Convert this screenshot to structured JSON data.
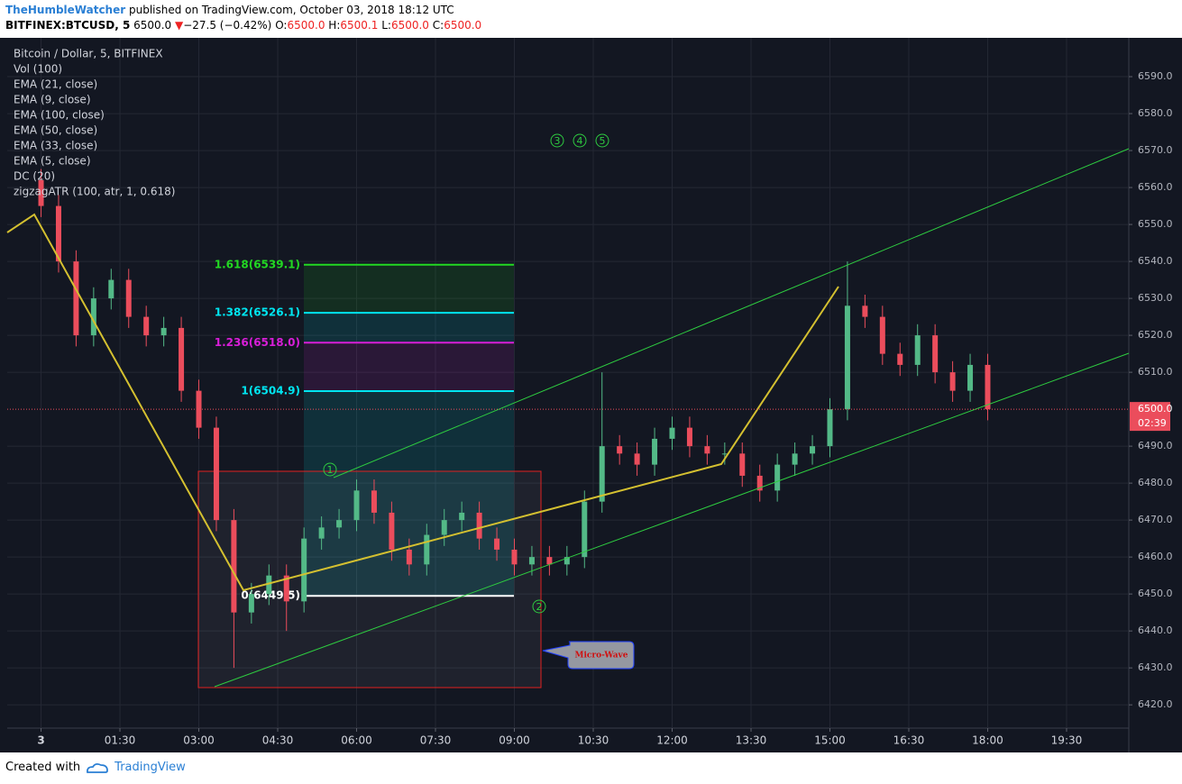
{
  "header": {
    "author": "TheHumbleWatcher",
    "published": "published on TradingView.com, October 03, 2018 18:12 UTC",
    "symbol": "BITFINEX:BTCUSD, 5",
    "price": "6500.0",
    "arrow": "▼",
    "change": "−27.5 (−0.42%)",
    "o_label": "O:",
    "o": "6500.0",
    "h_label": "H:",
    "h": "6500.1",
    "l_label": "L:",
    "l": "6500.0",
    "c_label": "C:",
    "c": "6500.0"
  },
  "chart_data": {
    "type": "candlestick",
    "title": "Bitcoin / Dollar, 5, BITFINEX",
    "indicators": [
      "Vol (100)",
      "EMA (21, close)",
      "EMA (9, close)",
      "EMA (100, close)",
      "EMA (50, close)",
      "EMA (33, close)",
      "EMA (5, close)",
      "DC (20)",
      "zigzagATR (100, atr, 1, 0.618)"
    ],
    "x": [
      0,
      20,
      40,
      60,
      80,
      100,
      120,
      140,
      160,
      180,
      200,
      220,
      240,
      260,
      280,
      300,
      320,
      340,
      360,
      380,
      400,
      420,
      440,
      460,
      480,
      500,
      520,
      540,
      560,
      580,
      600,
      620,
      640,
      660,
      680,
      700,
      720,
      740,
      760,
      780,
      800,
      820,
      840,
      860,
      880,
      900,
      920,
      940,
      960,
      980,
      1000,
      1020,
      1040,
      1060,
      1080
    ],
    "open": [
      6562,
      6555,
      6540,
      6520,
      6530,
      6535,
      6525,
      6520,
      6522,
      6505,
      6495,
      6470,
      6445,
      6450,
      6455,
      6448,
      6465,
      6468,
      6470,
      6478,
      6472,
      6462,
      6458,
      6466,
      6470,
      6472,
      6465,
      6462,
      6458,
      6460,
      6458,
      6460,
      6475,
      6490,
      6488,
      6485,
      6492,
      6495,
      6490,
      6488,
      6488,
      6482,
      6478,
      6485,
      6488,
      6490,
      6500,
      6528,
      6525,
      6515,
      6512,
      6520,
      6510,
      6505,
      6512
    ],
    "high": [
      6565,
      6558,
      6543,
      6533,
      6538,
      6538,
      6528,
      6525,
      6525,
      6508,
      6498,
      6473,
      6453,
      6458,
      6458,
      6468,
      6471,
      6473,
      6481,
      6481,
      6475,
      6465,
      6469,
      6473,
      6475,
      6475,
      6468,
      6465,
      6463,
      6463,
      6463,
      6478,
      6510,
      6493,
      6491,
      6495,
      6498,
      6498,
      6493,
      6491,
      6491,
      6485,
      6488,
      6491,
      6493,
      6503,
      6540,
      6531,
      6528,
      6518,
      6523,
      6523,
      6513,
      6515,
      6515
    ],
    "low": [
      6552,
      6537,
      6517,
      6517,
      6527,
      6522,
      6517,
      6517,
      6502,
      6492,
      6467,
      6430,
      6442,
      6447,
      6440,
      6445,
      6462,
      6465,
      6467,
      6469,
      6459,
      6455,
      6455,
      6463,
      6467,
      6462,
      6459,
      6455,
      6455,
      6455,
      6455,
      6457,
      6472,
      6485,
      6482,
      6482,
      6489,
      6487,
      6485,
      6485,
      6479,
      6475,
      6475,
      6482,
      6485,
      6487,
      6497,
      6522,
      6512,
      6509,
      6509,
      6507,
      6502,
      6502,
      6497
    ],
    "close": [
      6555,
      6540,
      6520,
      6530,
      6535,
      6525,
      6520,
      6522,
      6505,
      6495,
      6470,
      6445,
      6450,
      6455,
      6448,
      6465,
      6468,
      6470,
      6478,
      6472,
      6462,
      6458,
      6466,
      6470,
      6472,
      6465,
      6462,
      6458,
      6460,
      6458,
      6460,
      6475,
      6490,
      6488,
      6485,
      6492,
      6495,
      6490,
      6488,
      6488,
      6482,
      6478,
      6485,
      6488,
      6490,
      6500,
      6528,
      6525,
      6515,
      6512,
      6520,
      6510,
      6505,
      6512,
      6500
    ],
    "up_color": "#53b987",
    "down_color": "#eb4d5c",
    "xlim": [
      -38.6,
      1241
    ],
    "xticks": [
      {
        "value": 0,
        "label": "3"
      },
      {
        "value": 90,
        "label": "01:30"
      },
      {
        "value": 180,
        "label": "03:00"
      },
      {
        "value": 270,
        "label": "04:30"
      },
      {
        "value": 360,
        "label": "06:00"
      },
      {
        "value": 450,
        "label": "07:30"
      },
      {
        "value": 540,
        "label": "09:00"
      },
      {
        "value": 630,
        "label": "10:30"
      },
      {
        "value": 720,
        "label": "12:00"
      },
      {
        "value": 810,
        "label": "13:30"
      },
      {
        "value": 900,
        "label": "15:00"
      },
      {
        "value": 990,
        "label": "16:30"
      },
      {
        "value": 1080,
        "label": "18:00"
      },
      {
        "value": 1170,
        "label": "19:30"
      }
    ],
    "ylim": [
      6413.7,
      6600.5
    ],
    "yticks": [
      {
        "value": 6420,
        "label": "6420.0"
      },
      {
        "value": 6430,
        "label": "6430.0"
      },
      {
        "value": 6440,
        "label": "6440.0"
      },
      {
        "value": 6450,
        "label": "6450.0"
      },
      {
        "value": 6460,
        "label": "6460.0"
      },
      {
        "value": 6470,
        "label": "6470.0"
      },
      {
        "value": 6480,
        "label": "6480.0"
      },
      {
        "value": 6490,
        "label": "6490.0"
      },
      {
        "value": 6510,
        "label": "6510.0"
      },
      {
        "value": 6520,
        "label": "6520.0"
      },
      {
        "value": 6530,
        "label": "6530.0"
      },
      {
        "value": 6540,
        "label": "6540.0"
      },
      {
        "value": 6550,
        "label": "6550.0"
      },
      {
        "value": 6560,
        "label": "6560.0"
      },
      {
        "value": 6570,
        "label": "6570.0"
      },
      {
        "value": 6580,
        "label": "6580.0"
      },
      {
        "value": 6590,
        "label": "6590.0"
      }
    ],
    "grid": true,
    "last_price": {
      "value": 6500,
      "label": "6500.0"
    },
    "countdown": "02:39",
    "fib_levels": [
      {
        "value": 6539.1,
        "label": "1.618(6539.1)",
        "color": "#22d822"
      },
      {
        "value": 6526.1,
        "label": "1.382(6526.1)",
        "color": "#00e5f0"
      },
      {
        "value": 6518.0,
        "label": "1.236(6518.0)",
        "color": "#d81ed8"
      },
      {
        "value": 6504.9,
        "label": "1(6504.9)",
        "color": "#00e5f0"
      },
      {
        "value": 6449.5,
        "label": "0(6449.5)",
        "color": "#ffffff"
      }
    ],
    "waves": [
      "1",
      "2",
      "3",
      "4",
      "5"
    ],
    "callout": "Micro-Wave"
  },
  "footer": {
    "created": "Created with",
    "brand": "TradingView"
  }
}
